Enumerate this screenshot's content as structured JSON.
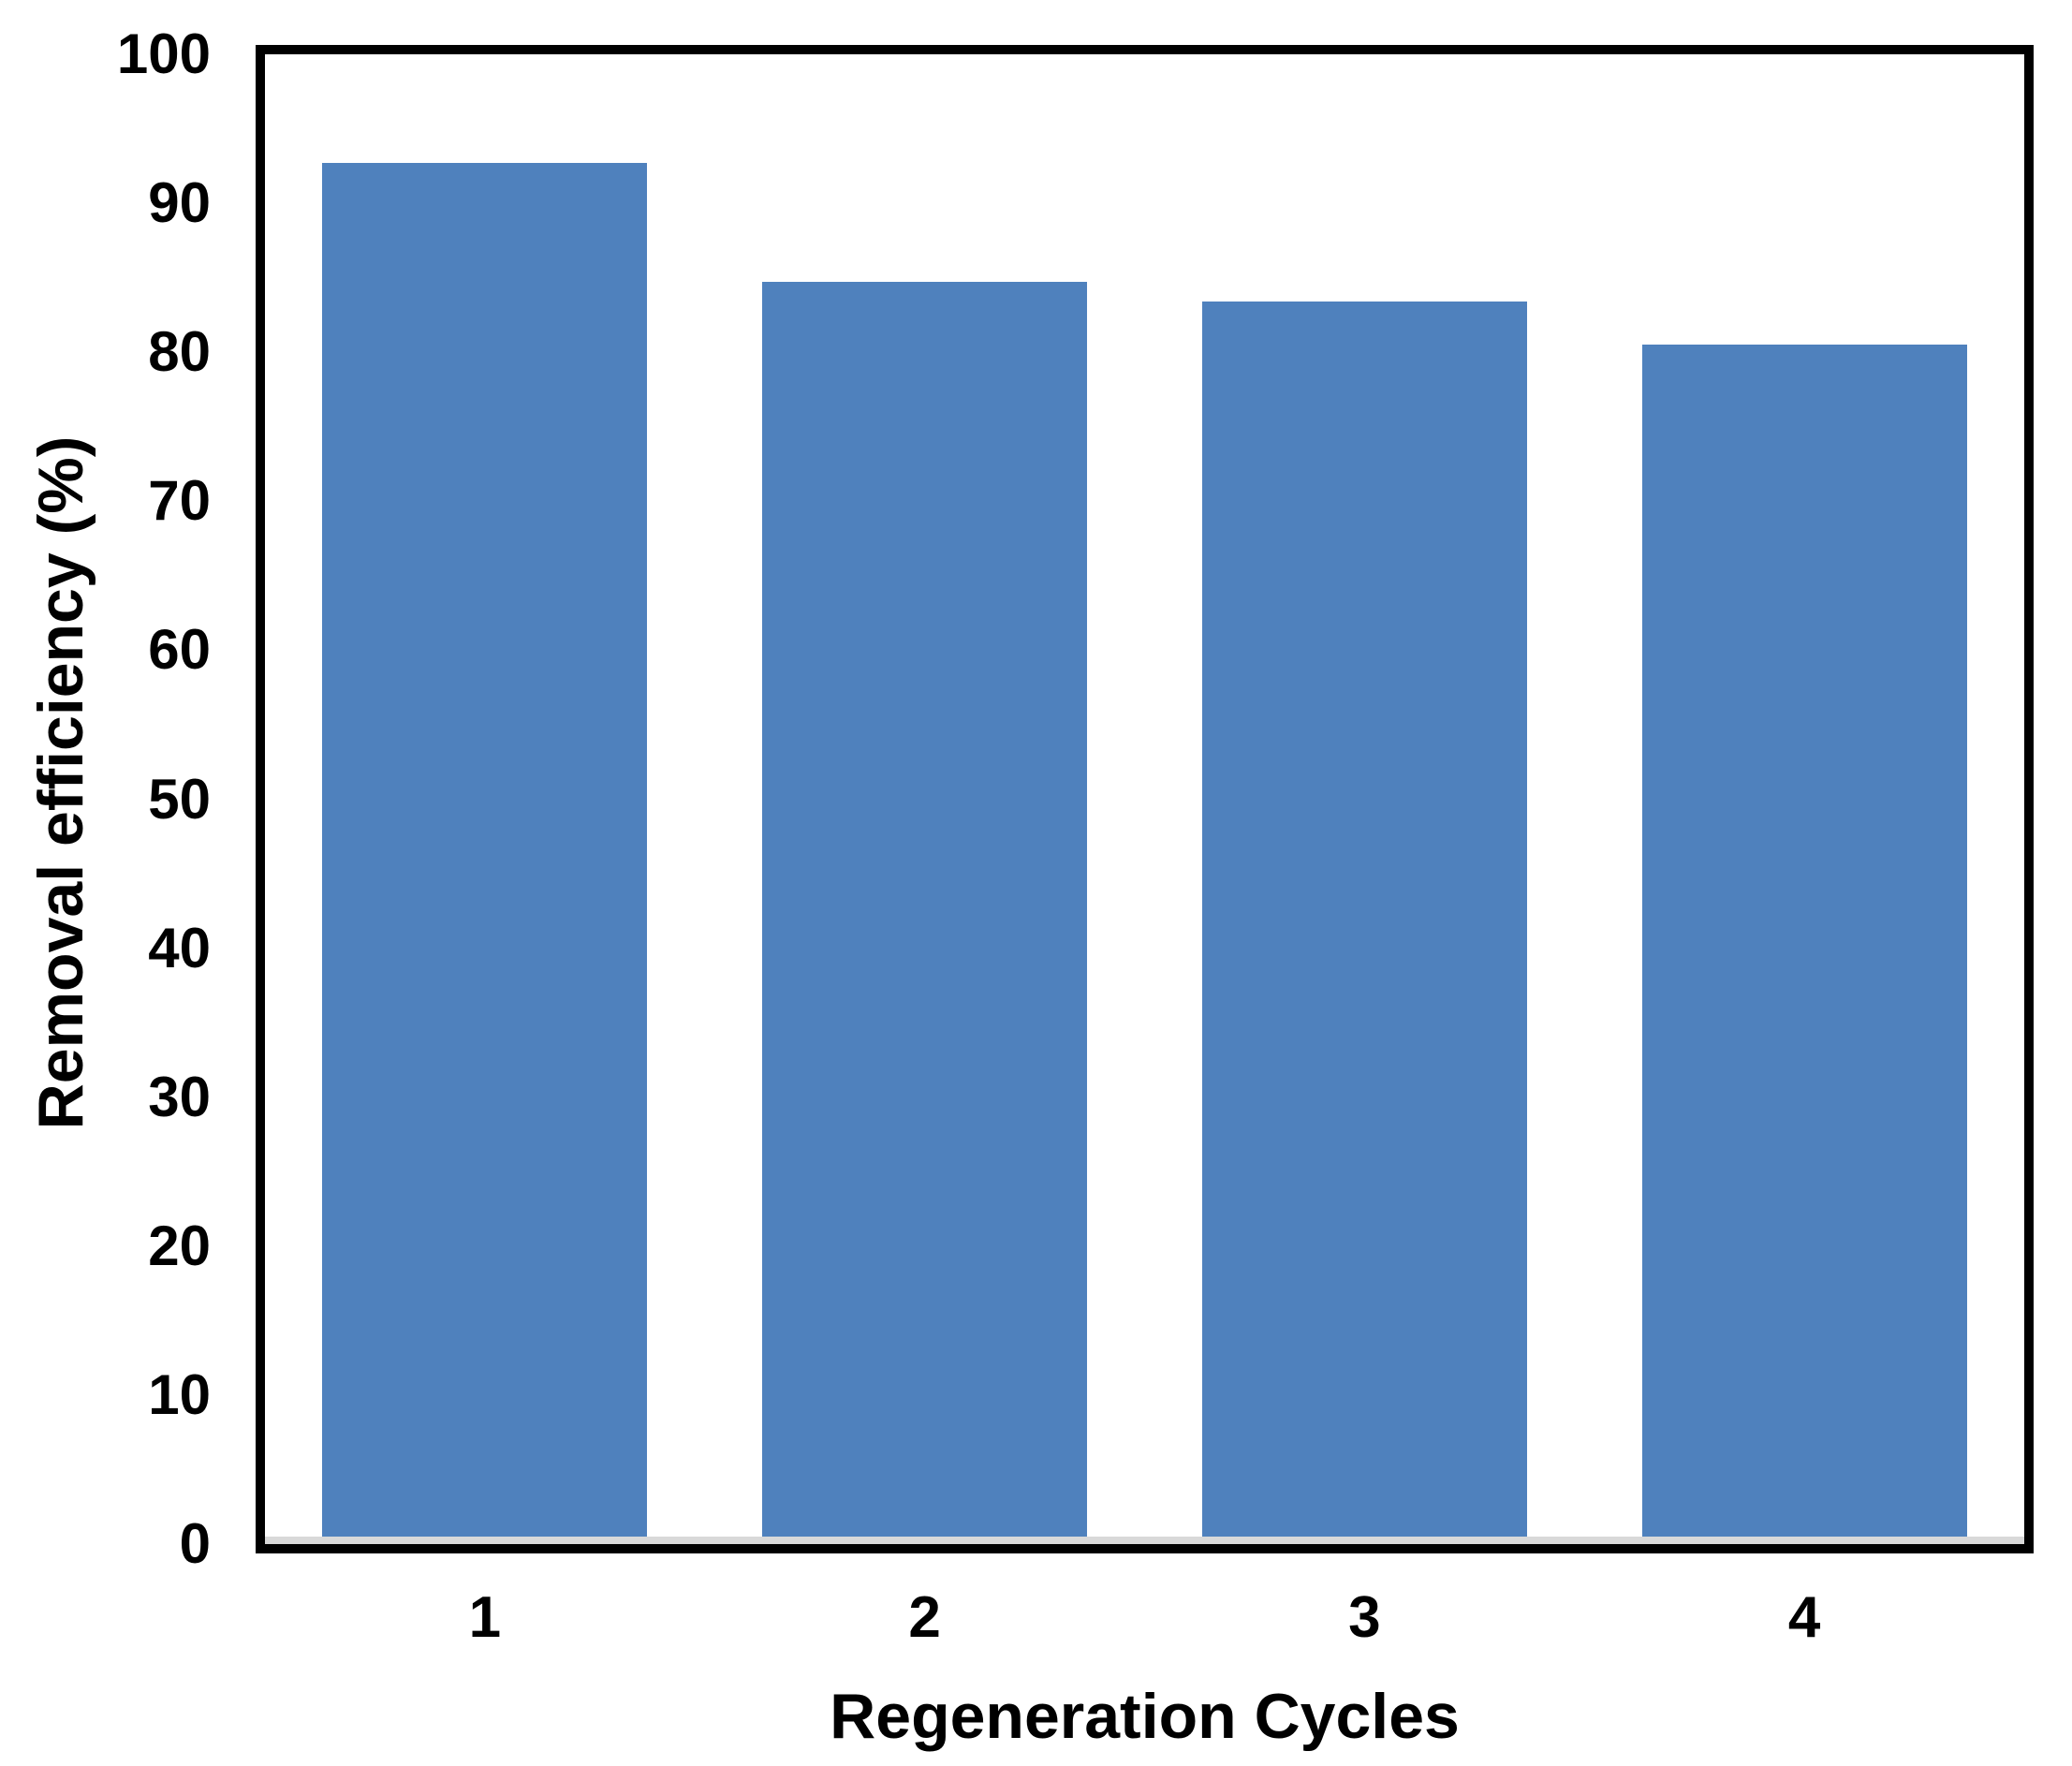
{
  "chart_data": {
    "type": "bar",
    "categories": [
      "1",
      "2",
      "3",
      "4"
    ],
    "values": [
      92.7,
      84.7,
      83.4,
      80.5
    ],
    "series": [
      {
        "name": "Removal efficiency",
        "values": [
          92.7,
          84.7,
          83.4,
          80.5
        ]
      }
    ],
    "title": "",
    "xlabel": "Regeneration Cycles",
    "ylabel": "Removal efficiency (%)",
    "ylim": [
      0,
      100
    ],
    "ytick_step": 10,
    "yticks": [
      "100",
      "90",
      "80",
      "70",
      "60",
      "50",
      "40",
      "30",
      "20",
      "10",
      "0"
    ],
    "grid": false,
    "legend": false,
    "bar_color": "#4f81bd",
    "frame_color": "#000000",
    "baseline_color": "#d9d9d9",
    "background_color": "#ffffff"
  }
}
